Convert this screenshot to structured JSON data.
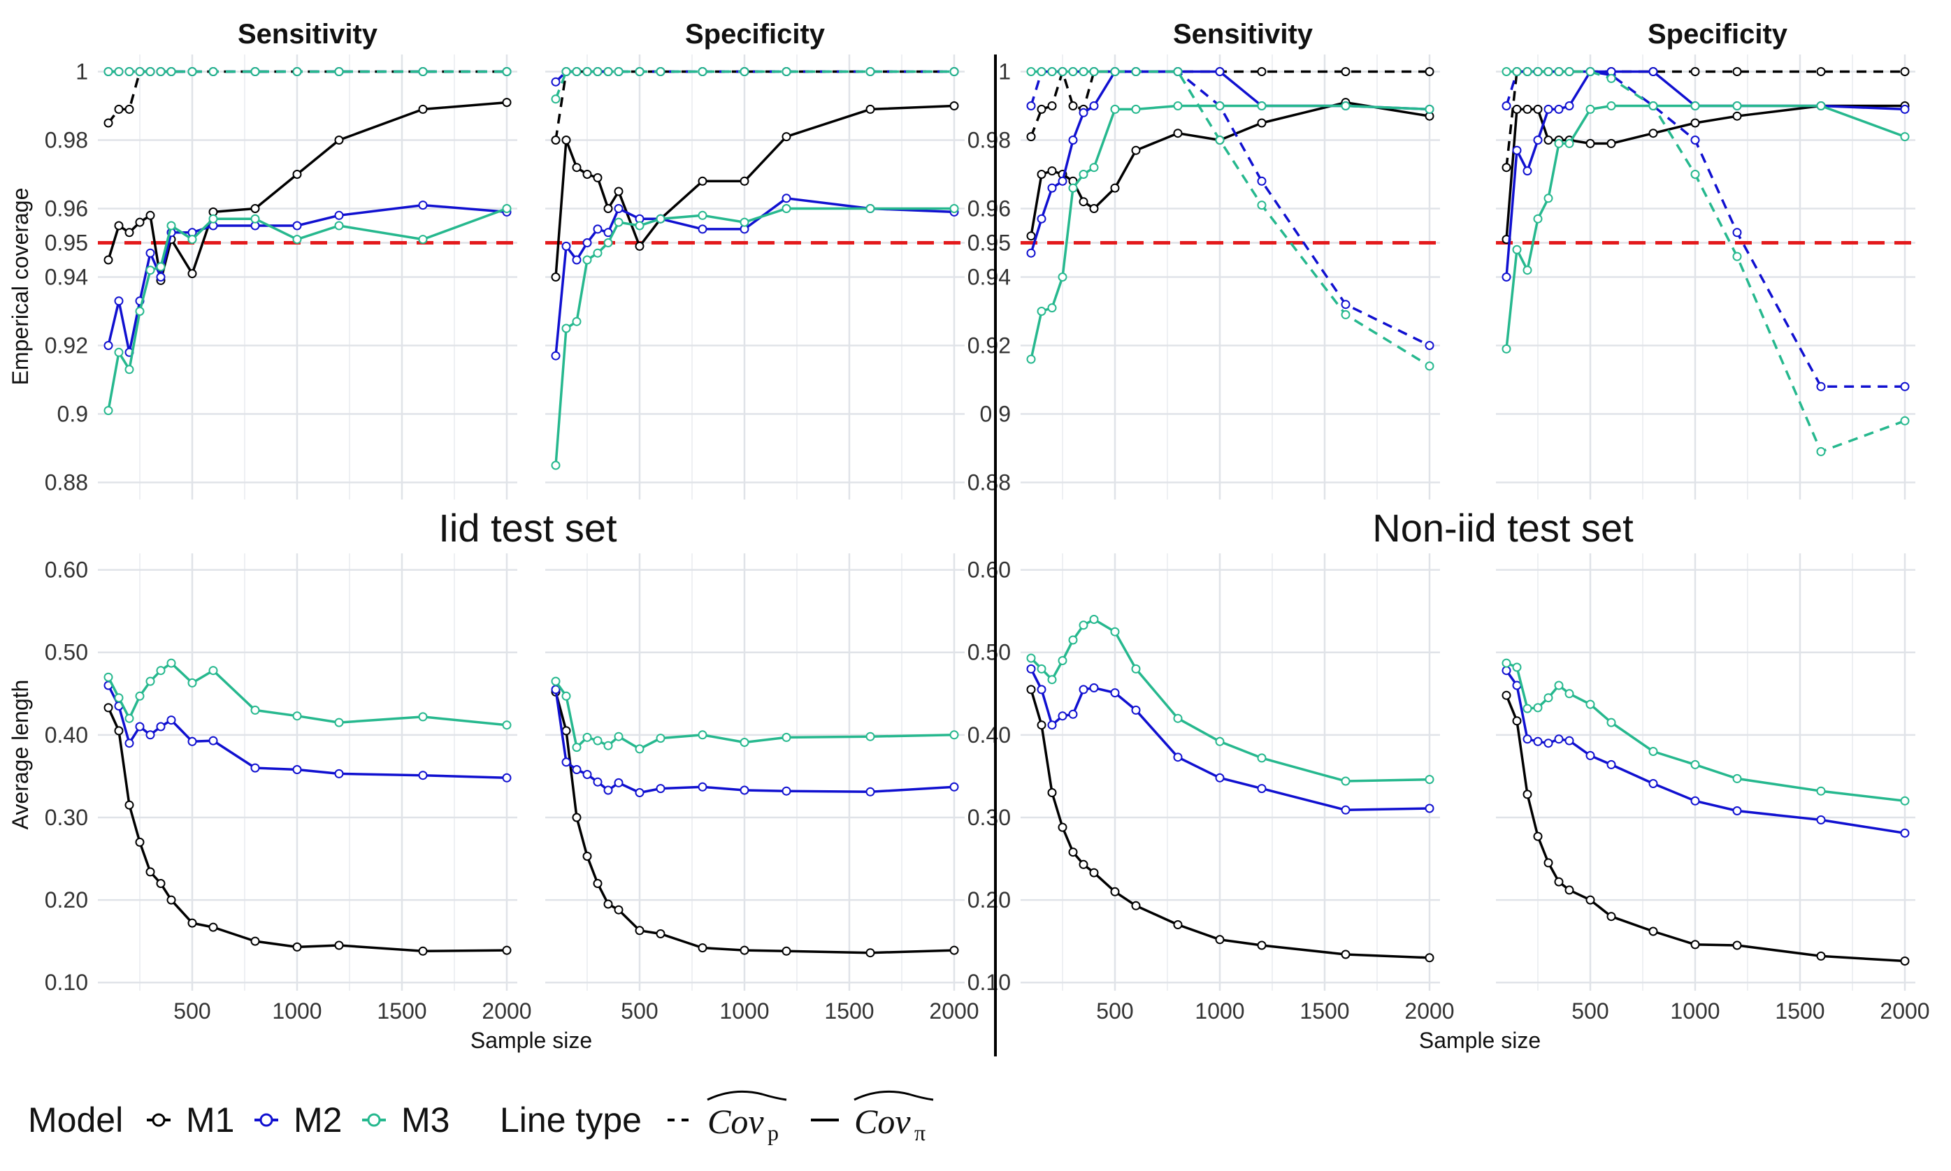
{
  "chart_data": {
    "type": "line",
    "sections": [
      "Iid test set",
      "Non-iid test set"
    ],
    "facet_titles": [
      "Sensitivity",
      "Specificity"
    ],
    "xlabel": "Sample size",
    "x_ticks": [
      500,
      1000,
      1500,
      2000
    ],
    "xlim": [
      50,
      2050
    ],
    "coverage": {
      "ylabel": "Emperical coverage",
      "y_ticks": [
        0.88,
        0.9,
        0.92,
        0.94,
        0.95,
        0.96,
        0.98,
        1
      ],
      "y_tick_labels": [
        "0.88",
        "0.9",
        "0.92",
        "0.94",
        "0.95",
        "0.96",
        "0.98",
        "1"
      ],
      "ylim": [
        0.875,
        1.005
      ],
      "reference_line": 0.95,
      "reference_color": "#e31a1c"
    },
    "length": {
      "ylabel": "Average length",
      "y_ticks": [
        0.1,
        0.2,
        0.3,
        0.4,
        0.5,
        0.6
      ],
      "y_tick_labels": [
        "0.10",
        "0.20",
        "0.30",
        "0.40",
        "0.50",
        "0.60"
      ],
      "ylim": [
        0.09,
        0.62
      ]
    },
    "x": [
      100,
      150,
      200,
      250,
      300,
      350,
      400,
      500,
      600,
      800,
      1000,
      1200,
      1600,
      2000
    ],
    "models": [
      {
        "name": "M1",
        "color": "#000000"
      },
      {
        "name": "M2",
        "color": "#1010d0"
      },
      {
        "name": "M3",
        "color": "#26b88e"
      }
    ],
    "line_types": [
      {
        "key": "dashed",
        "label": "Cov",
        "subscript": "p"
      },
      {
        "key": "solid",
        "label": "Cov",
        "subscript": "π"
      }
    ],
    "panels": [
      {
        "section": "Iid test set",
        "facet": "Sensitivity",
        "coverage": {
          "M1": {
            "solid": [
              0.945,
              0.955,
              0.953,
              0.956,
              0.958,
              0.939,
              0.951,
              0.941,
              0.959,
              0.96,
              0.97,
              0.98,
              0.989,
              0.991
            ],
            "dashed": [
              0.985,
              0.989,
              0.989,
              1,
              1,
              1,
              1,
              1,
              1,
              1,
              1,
              1,
              1,
              1
            ]
          },
          "M2": {
            "solid": [
              0.92,
              0.933,
              0.918,
              0.933,
              0.947,
              0.94,
              0.953,
              0.953,
              0.955,
              0.955,
              0.955,
              0.958,
              0.961,
              0.959
            ],
            "dashed": [
              1,
              1,
              1,
              1,
              1,
              1,
              1,
              1,
              1,
              1,
              1,
              1,
              1,
              1
            ]
          },
          "M3": {
            "solid": [
              0.901,
              0.918,
              0.913,
              0.93,
              0.942,
              0.943,
              0.955,
              0.951,
              0.957,
              0.957,
              0.951,
              0.955,
              0.951,
              0.96
            ],
            "dashed": [
              1,
              1,
              1,
              1,
              1,
              1,
              1,
              1,
              1,
              1,
              1,
              1,
              1,
              1
            ]
          }
        },
        "length": {
          "M1": [
            0.433,
            0.405,
            0.315,
            0.27,
            0.234,
            0.22,
            0.2,
            0.172,
            0.167,
            0.15,
            0.143,
            0.145,
            0.138,
            0.139
          ],
          "M2": [
            0.46,
            0.435,
            0.39,
            0.41,
            0.4,
            0.41,
            0.418,
            0.392,
            0.393,
            0.36,
            0.358,
            0.353,
            0.351,
            0.348
          ],
          "M3": [
            0.47,
            0.445,
            0.42,
            0.447,
            0.465,
            0.478,
            0.487,
            0.463,
            0.478,
            0.43,
            0.423,
            0.415,
            0.422,
            0.412
          ]
        }
      },
      {
        "section": "Iid test set",
        "facet": "Specificity",
        "coverage": {
          "M1": {
            "solid": [
              0.94,
              0.98,
              0.972,
              0.97,
              0.969,
              0.96,
              0.965,
              0.949,
              0.957,
              0.968,
              0.968,
              0.981,
              0.989,
              0.99
            ],
            "dashed": [
              0.98,
              1,
              1,
              1,
              1,
              1,
              1,
              1,
              1,
              1,
              1,
              1,
              1,
              1
            ]
          },
          "M2": {
            "solid": [
              0.917,
              0.949,
              0.945,
              0.95,
              0.954,
              0.953,
              0.96,
              0.957,
              0.957,
              0.954,
              0.954,
              0.963,
              0.96,
              0.959
            ],
            "dashed": [
              0.997,
              1,
              1,
              1,
              1,
              1,
              1,
              1,
              1,
              1,
              1,
              1,
              1,
              1
            ]
          },
          "M3": {
            "solid": [
              0.885,
              0.925,
              0.927,
              0.945,
              0.947,
              0.95,
              0.956,
              0.955,
              0.957,
              0.958,
              0.956,
              0.96,
              0.96,
              0.96
            ],
            "dashed": [
              0.992,
              1,
              1,
              1,
              1,
              1,
              1,
              1,
              1,
              1,
              1,
              1,
              1,
              1
            ]
          }
        },
        "length": {
          "M1": [
            0.452,
            0.405,
            0.3,
            0.253,
            0.22,
            0.195,
            0.188,
            0.163,
            0.159,
            0.142,
            0.139,
            0.138,
            0.136,
            0.139
          ],
          "M2": [
            0.455,
            0.367,
            0.358,
            0.352,
            0.343,
            0.333,
            0.342,
            0.33,
            0.335,
            0.337,
            0.333,
            0.332,
            0.331,
            0.337
          ],
          "M3": [
            0.465,
            0.447,
            0.385,
            0.397,
            0.393,
            0.387,
            0.398,
            0.383,
            0.396,
            0.4,
            0.391,
            0.397,
            0.398,
            0.4
          ]
        }
      },
      {
        "section": "Non-iid test set",
        "facet": "Sensitivity",
        "coverage": {
          "M1": {
            "solid": [
              0.952,
              0.97,
              0.971,
              0.97,
              0.968,
              0.962,
              0.96,
              0.966,
              0.977,
              0.982,
              0.98,
              0.985,
              0.991,
              0.987
            ],
            "dashed": [
              0.981,
              0.989,
              0.99,
              1,
              0.99,
              0.989,
              1,
              1,
              1,
              1,
              1,
              1,
              1,
              1
            ]
          },
          "M2": {
            "solid": [
              0.947,
              0.957,
              0.966,
              0.968,
              0.98,
              0.988,
              0.99,
              1,
              1,
              1,
              1,
              0.99,
              0.99,
              0.989
            ],
            "dashed": [
              0.99,
              1,
              1,
              1,
              1,
              1,
              1,
              1,
              1,
              1,
              0.99,
              0.968,
              0.932,
              0.92
            ]
          },
          "M3": {
            "solid": [
              0.916,
              0.93,
              0.931,
              0.94,
              0.966,
              0.97,
              0.972,
              0.989,
              0.989,
              0.99,
              0.99,
              0.99,
              0.99,
              0.989
            ],
            "dashed": [
              1,
              1,
              1,
              1,
              1,
              1,
              1,
              1,
              1,
              1,
              0.98,
              0.961,
              0.929,
              0.914
            ]
          }
        },
        "length": {
          "M1": [
            0.455,
            0.412,
            0.33,
            0.288,
            0.258,
            0.243,
            0.233,
            0.21,
            0.193,
            0.17,
            0.152,
            0.145,
            0.134,
            0.13
          ],
          "M2": [
            0.48,
            0.455,
            0.412,
            0.423,
            0.425,
            0.455,
            0.457,
            0.451,
            0.43,
            0.373,
            0.348,
            0.335,
            0.309,
            0.311
          ],
          "M3": [
            0.493,
            0.48,
            0.467,
            0.49,
            0.515,
            0.533,
            0.54,
            0.525,
            0.48,
            0.42,
            0.392,
            0.372,
            0.344,
            0.346
          ]
        }
      },
      {
        "section": "Non-iid test set",
        "facet": "Specificity",
        "coverage": {
          "M1": {
            "solid": [
              0.951,
              0.989,
              0.989,
              0.989,
              0.98,
              0.98,
              0.98,
              0.979,
              0.979,
              0.982,
              0.985,
              0.987,
              0.99,
              0.99
            ],
            "dashed": [
              0.972,
              1,
              1,
              1,
              1,
              1,
              1,
              1,
              1,
              1,
              1,
              1,
              1,
              1
            ]
          },
          "M2": {
            "solid": [
              0.94,
              0.977,
              0.971,
              0.98,
              0.989,
              0.989,
              0.99,
              1,
              1,
              1,
              0.99,
              0.99,
              0.99,
              0.989
            ],
            "dashed": [
              0.99,
              1,
              1,
              1,
              1,
              1,
              1,
              1,
              0.999,
              0.99,
              0.98,
              0.953,
              0.908,
              0.908
            ]
          },
          "M3": {
            "solid": [
              0.919,
              0.948,
              0.942,
              0.957,
              0.963,
              0.979,
              0.979,
              0.989,
              0.99,
              0.99,
              0.99,
              0.99,
              0.99,
              0.981
            ],
            "dashed": [
              1,
              1,
              1,
              1,
              1,
              1,
              1,
              1,
              0.998,
              0.99,
              0.97,
              0.946,
              0.889,
              0.898
            ]
          }
        },
        "length": {
          "M1": [
            0.448,
            0.417,
            0.328,
            0.277,
            0.245,
            0.222,
            0.212,
            0.2,
            0.18,
            0.162,
            0.146,
            0.145,
            0.132,
            0.126
          ],
          "M2": [
            0.478,
            0.46,
            0.395,
            0.392,
            0.39,
            0.395,
            0.393,
            0.375,
            0.364,
            0.341,
            0.32,
            0.308,
            0.297,
            0.281
          ],
          "M3": [
            0.487,
            0.482,
            0.432,
            0.433,
            0.445,
            0.46,
            0.45,
            0.437,
            0.415,
            0.38,
            0.364,
            0.347,
            0.332,
            0.32
          ]
        }
      }
    ],
    "legend": {
      "model_title": "Model",
      "linetype_title": "Line type",
      "position": "bottom-left"
    }
  }
}
